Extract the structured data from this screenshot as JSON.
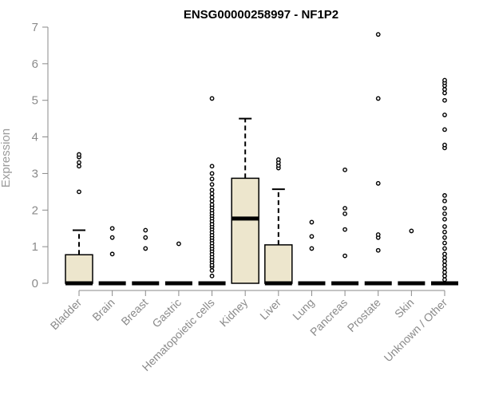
{
  "chart_data": {
    "type": "boxplot",
    "title": "ENSG00000258997 - NF1P2",
    "xlabel": "",
    "ylabel": "Expression",
    "ylim": [
      0,
      7
    ],
    "yticks": [
      0,
      1,
      2,
      3,
      4,
      5,
      6,
      7
    ],
    "grid": false,
    "legend": "none",
    "colors": {
      "box_fill": "#ede6cd",
      "stroke": "#000000",
      "axis": "#8a8a8a"
    },
    "categories": [
      "Bladder",
      "Brain",
      "Breast",
      "Gastric",
      "Hematopoietic cells",
      "Kidney",
      "Liver",
      "Lung",
      "Pancreas",
      "Prostate",
      "Skin",
      "Unknown / Other"
    ],
    "boxes": [
      {
        "q1": 0,
        "median": 0,
        "q3": 0.78,
        "whisker_low": 0,
        "whisker_high": 1.45,
        "outliers": [
          2.5,
          3.2,
          3.3,
          3.45,
          3.52
        ]
      },
      {
        "q1": 0,
        "median": 0,
        "q3": 0,
        "whisker_low": 0,
        "whisker_high": 0,
        "outliers": [
          0.8,
          1.25,
          1.5
        ]
      },
      {
        "q1": 0,
        "median": 0,
        "q3": 0,
        "whisker_low": 0,
        "whisker_high": 0,
        "outliers": [
          0.95,
          1.25,
          1.45
        ]
      },
      {
        "q1": 0,
        "median": 0,
        "q3": 0,
        "whisker_low": 0,
        "whisker_high": 0,
        "outliers": [
          1.08
        ]
      },
      {
        "q1": 0,
        "median": 0,
        "q3": 0,
        "whisker_low": 0,
        "whisker_high": 0,
        "outliers": [
          0.2,
          0.35,
          0.45,
          0.5,
          0.58,
          0.65,
          0.72,
          0.8,
          0.88,
          0.95,
          1.02,
          1.1,
          1.18,
          1.25,
          1.32,
          1.4,
          1.48,
          1.55,
          1.62,
          1.7,
          1.78,
          1.85,
          1.92,
          2.0,
          2.08,
          2.15,
          2.25,
          2.35,
          2.45,
          2.55,
          2.7,
          2.85,
          3.0,
          3.2,
          5.05
        ]
      },
      {
        "q1": 0,
        "median": 1.77,
        "q3": 2.87,
        "whisker_low": 0,
        "whisker_high": 4.5,
        "outliers": []
      },
      {
        "q1": 0,
        "median": 0,
        "q3": 1.05,
        "whisker_low": 0,
        "whisker_high": 2.57,
        "outliers": [
          3.15,
          3.22,
          3.3,
          3.38
        ]
      },
      {
        "q1": 0,
        "median": 0,
        "q3": 0,
        "whisker_low": 0,
        "whisker_high": 0,
        "outliers": [
          0.95,
          1.28,
          1.67
        ]
      },
      {
        "q1": 0,
        "median": 0,
        "q3": 0,
        "whisker_low": 0,
        "whisker_high": 0,
        "outliers": [
          0.75,
          1.47,
          1.9,
          2.05,
          3.1
        ]
      },
      {
        "q1": 0,
        "median": 0,
        "q3": 0,
        "whisker_low": 0,
        "whisker_high": 0,
        "outliers": [
          0.9,
          1.25,
          1.33,
          2.73,
          5.05,
          6.8
        ]
      },
      {
        "q1": 0,
        "median": 0,
        "q3": 0,
        "whisker_low": 0,
        "whisker_high": 0,
        "outliers": [
          1.43
        ]
      },
      {
        "q1": 0,
        "median": 0,
        "q3": 0,
        "whisker_low": 0,
        "whisker_high": 0,
        "outliers": [
          0.1,
          0.2,
          0.3,
          0.4,
          0.5,
          0.6,
          0.7,
          0.8,
          0.95,
          1.1,
          1.25,
          1.4,
          1.55,
          1.75,
          1.9,
          2.05,
          2.25,
          2.4,
          3.7,
          3.78,
          4.2,
          4.6,
          5.0,
          5.2,
          5.3,
          5.4,
          5.48,
          5.55
        ]
      }
    ]
  }
}
